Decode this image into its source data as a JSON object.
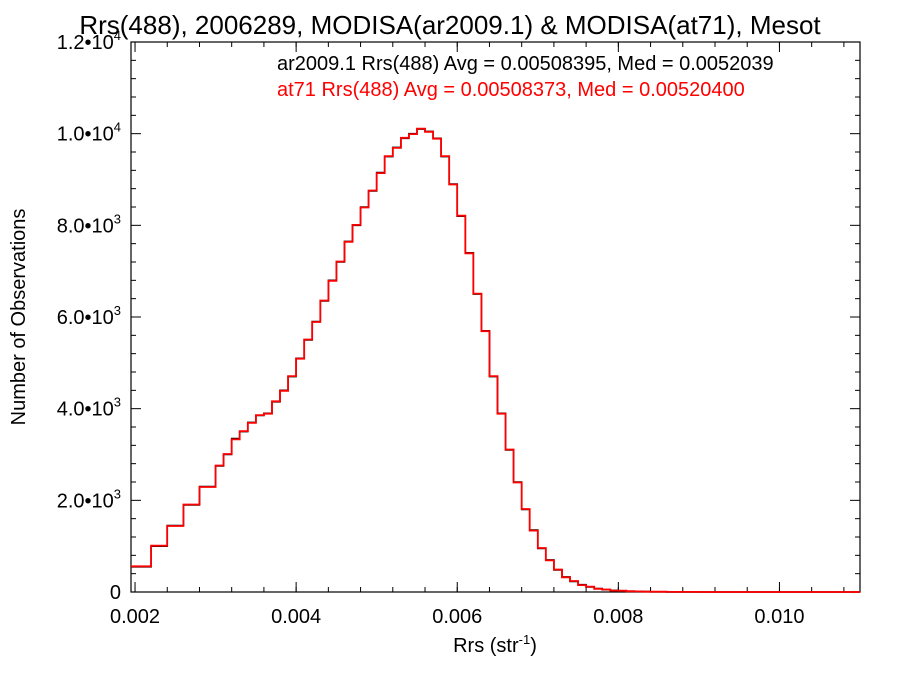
{
  "chart_data": {
    "type": "line",
    "title": "Rrs(488), 2006289, MODISA(ar2009.1) & MODISA(at71), Mesot",
    "xlabel": "Rrs (str",
    "xlabel_sup": "-1",
    "xlabel_end": ")",
    "ylabel": "Number of Observations",
    "xlim": [
      0.00195,
      0.011
    ],
    "ylim": [
      0,
      12000
    ],
    "x_ticks": [
      0.002,
      0.004,
      0.006,
      0.008,
      0.01
    ],
    "x_tick_labels": [
      "0.002",
      "0.004",
      "0.006",
      "0.008",
      "0.010"
    ],
    "y_ticks": [
      {
        "value": 0,
        "mantissa": "0",
        "exp": ""
      },
      {
        "value": 2000,
        "mantissa": "2.0•10",
        "exp": "3"
      },
      {
        "value": 4000,
        "mantissa": "4.0•10",
        "exp": "3"
      },
      {
        "value": 6000,
        "mantissa": "6.0•10",
        "exp": "3"
      },
      {
        "value": 8000,
        "mantissa": "8.0•10",
        "exp": "3"
      },
      {
        "value": 10000,
        "mantissa": "1.0•10",
        "exp": "4"
      },
      {
        "value": 12000,
        "mantissa": "1.2•10",
        "exp": "4"
      }
    ],
    "annotations": [
      {
        "text": "ar2009.1 Rrs(488) Avg = 0.00508395, Med = 0.0052039",
        "color": "#000000"
      },
      {
        "text": "at71 Rrs(488) Avg = 0.00508373, Med = 0.00520400",
        "color": "#ff0000"
      }
    ],
    "series": [
      {
        "color": "#000000",
        "style": "step",
        "x": [
          0.00195,
          0.0022,
          0.0024,
          0.0026,
          0.0028,
          0.003,
          0.0031,
          0.0032,
          0.0033,
          0.0034,
          0.0035,
          0.0036,
          0.0037,
          0.0038,
          0.0039,
          0.004,
          0.0041,
          0.0042,
          0.0043,
          0.0044,
          0.0045,
          0.0046,
          0.0047,
          0.0048,
          0.0049,
          0.005,
          0.0051,
          0.0052,
          0.0053,
          0.0054,
          0.0055,
          0.0056,
          0.0057,
          0.0058,
          0.0059,
          0.006,
          0.0061,
          0.0062,
          0.0063,
          0.0064,
          0.0065,
          0.0066,
          0.0067,
          0.0068,
          0.0069,
          0.007,
          0.0071,
          0.0072,
          0.0073,
          0.0074,
          0.0075,
          0.0076,
          0.0077,
          0.0078,
          0.0079,
          0.008,
          0.0081,
          0.0082,
          0.0083,
          0.0084,
          0.0086,
          0.0088,
          0.009,
          0.0095,
          0.01,
          0.0105,
          0.011
        ],
        "y": [
          550,
          1000,
          1450,
          1900,
          2300,
          2750,
          3000,
          3350,
          3500,
          3700,
          3850,
          3900,
          4150,
          4400,
          4700,
          5100,
          5500,
          5900,
          6350,
          6800,
          7200,
          7650,
          8000,
          8400,
          8750,
          9150,
          9500,
          9700,
          9900,
          10000,
          10100,
          10050,
          9900,
          9500,
          8900,
          8200,
          7400,
          6500,
          5700,
          4700,
          3900,
          3100,
          2400,
          1800,
          1350,
          950,
          700,
          480,
          330,
          230,
          160,
          110,
          75,
          50,
          35,
          25,
          18,
          12,
          8,
          5,
          3,
          2,
          1,
          0,
          0,
          0,
          0
        ]
      },
      {
        "color": "#ff0000",
        "style": "step",
        "x": [
          0.00195,
          0.0022,
          0.0024,
          0.0026,
          0.0028,
          0.003,
          0.0031,
          0.0032,
          0.0033,
          0.0034,
          0.0035,
          0.0036,
          0.0037,
          0.0038,
          0.0039,
          0.004,
          0.0041,
          0.0042,
          0.0043,
          0.0044,
          0.0045,
          0.0046,
          0.0047,
          0.0048,
          0.0049,
          0.005,
          0.0051,
          0.0052,
          0.0053,
          0.0054,
          0.0055,
          0.0056,
          0.0057,
          0.0058,
          0.0059,
          0.006,
          0.0061,
          0.0062,
          0.0063,
          0.0064,
          0.0065,
          0.0066,
          0.0067,
          0.0068,
          0.0069,
          0.007,
          0.0071,
          0.0072,
          0.0073,
          0.0074,
          0.0075,
          0.0076,
          0.0077,
          0.0078,
          0.0079,
          0.008,
          0.0081,
          0.0082,
          0.0083,
          0.0084,
          0.0086,
          0.0088,
          0.009,
          0.0095,
          0.01,
          0.0105,
          0.011
        ],
        "y": [
          560,
          1010,
          1440,
          1910,
          2290,
          2760,
          3010,
          3330,
          3510,
          3690,
          3860,
          3890,
          4160,
          4390,
          4710,
          5090,
          5510,
          5890,
          6360,
          6790,
          7210,
          7640,
          8010,
          8390,
          8760,
          9140,
          9510,
          9690,
          9910,
          9990,
          10110,
          10040,
          9890,
          9510,
          8890,
          8210,
          7390,
          6510,
          5690,
          4710,
          3890,
          3110,
          2390,
          1810,
          1340,
          960,
          690,
          490,
          320,
          240,
          150,
          115,
          70,
          55,
          30,
          28,
          15,
          13,
          7,
          6,
          2,
          3,
          1,
          0,
          0,
          0,
          0
        ]
      }
    ],
    "grid": false
  }
}
